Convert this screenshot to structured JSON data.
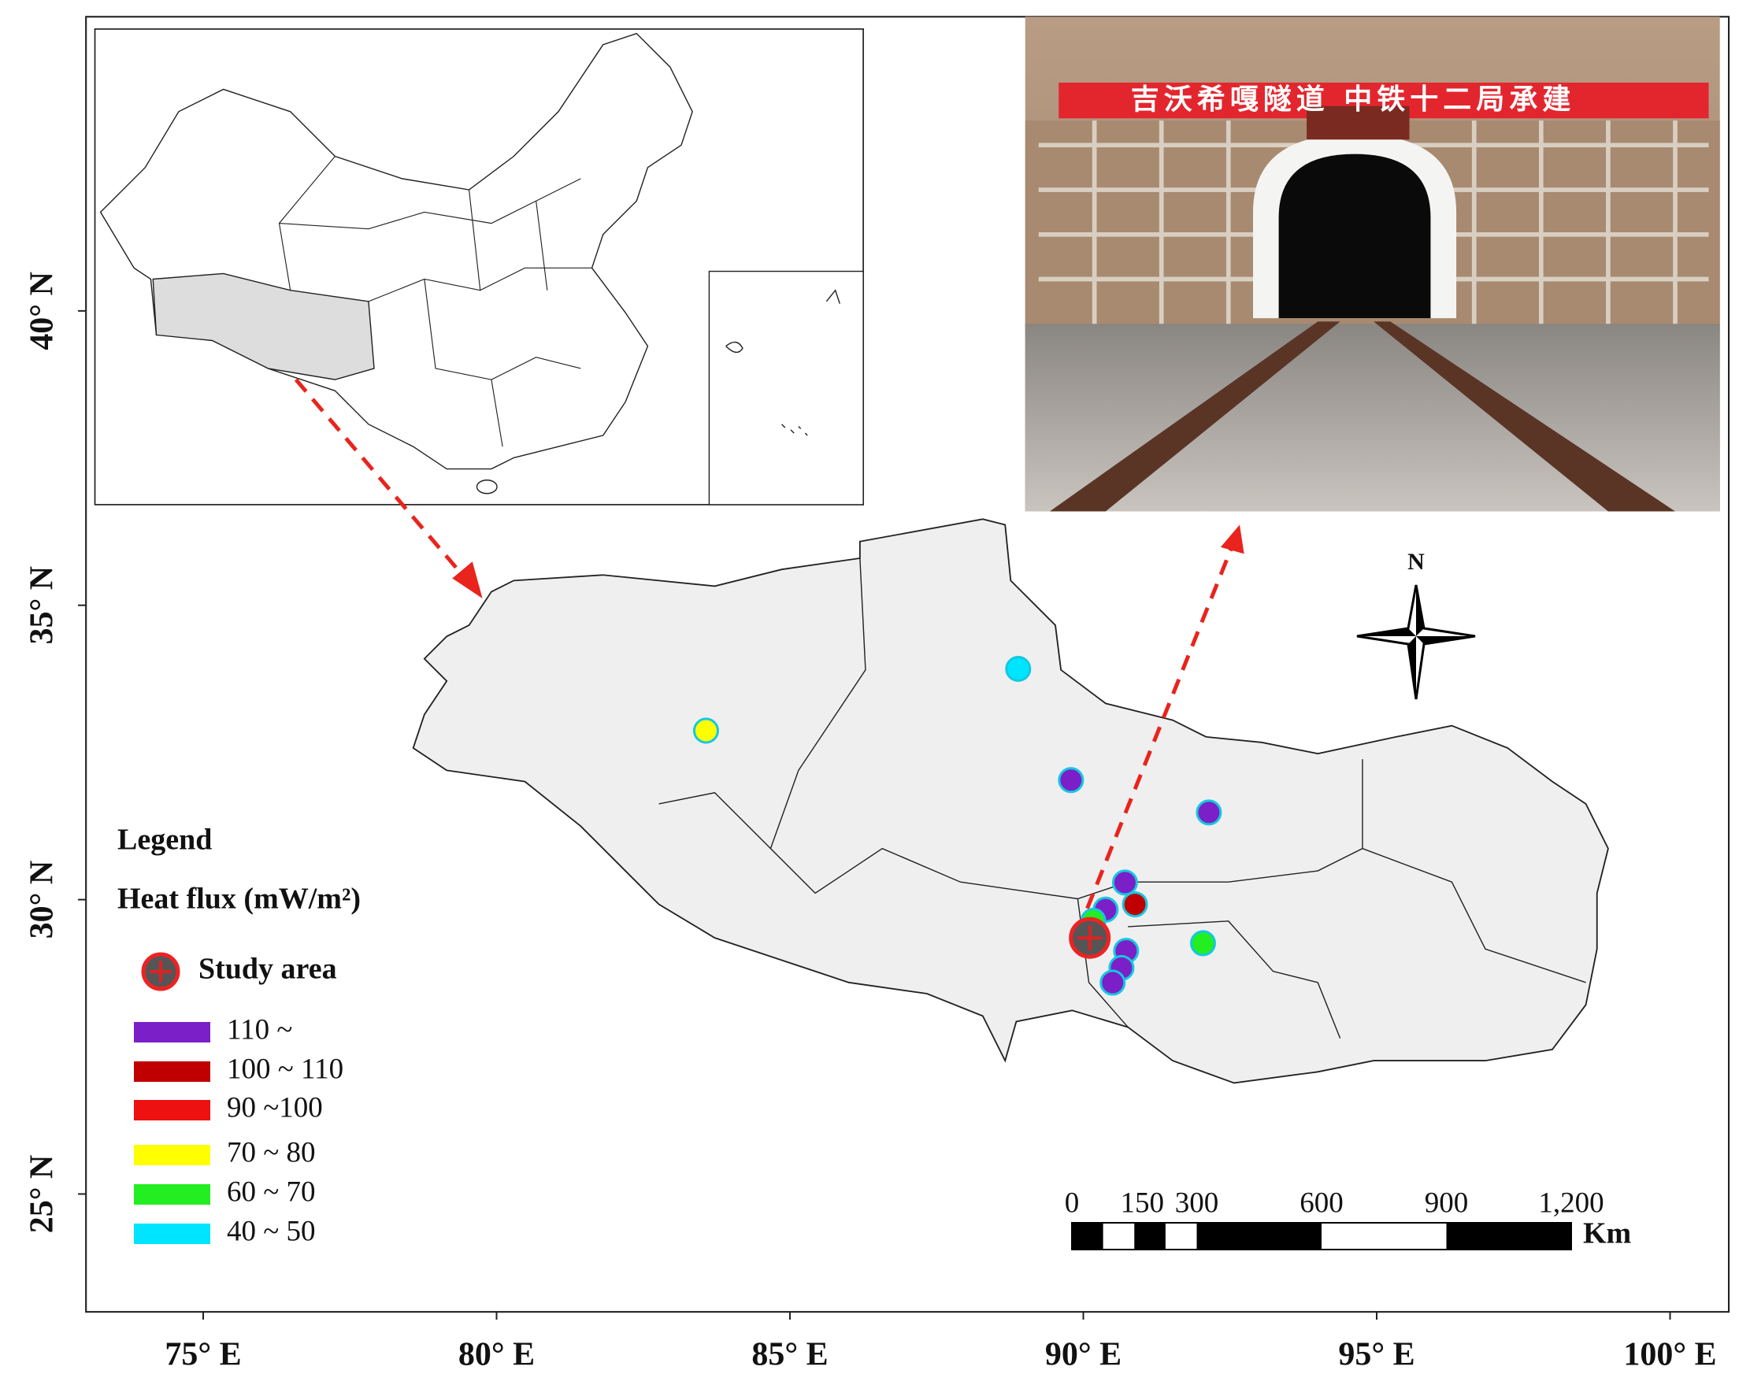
{
  "map": {
    "x_axis": {
      "lim": [
        73,
        101
      ],
      "ticks": [
        {
          "value": 75,
          "label": "75° E"
        },
        {
          "value": 80,
          "label": "80° E"
        },
        {
          "value": 85,
          "label": "85° E"
        },
        {
          "value": 90,
          "label": "90° E"
        },
        {
          "value": 95,
          "label": "95° E"
        },
        {
          "value": 100,
          "label": "100° E"
        }
      ]
    },
    "y_axis": {
      "lim": [
        23,
        45
      ],
      "ticks": [
        {
          "value": 25,
          "label": "25° N"
        },
        {
          "value": 30,
          "label": "30° N"
        },
        {
          "value": 35,
          "label": "35° N"
        },
        {
          "value": 40,
          "label": "40° N"
        }
      ]
    },
    "legend": {
      "title": "Legend",
      "subtitle": "Heat flux (mW/m²)",
      "study_area": "Study area",
      "classes": [
        {
          "label": "110 ~",
          "color": "#7b1fc8"
        },
        {
          "label": "100 ~ 110",
          "color": "#c00000"
        },
        {
          "label": "90 ~100",
          "color": "#ee1111"
        },
        {
          "label": "70 ~ 80",
          "color": "#ffff00"
        },
        {
          "label": "60 ~ 70",
          "color": "#22ee22"
        },
        {
          "label": "40 ~ 50",
          "color": "#00e5ff"
        }
      ]
    },
    "points": [
      {
        "lon": 88.89,
        "lat": 33.92,
        "class": 5
      },
      {
        "lon": 83.57,
        "lat": 32.87,
        "class": 3
      },
      {
        "lon": 89.79,
        "lat": 32.03,
        "class": 0
      },
      {
        "lon": 92.14,
        "lat": 31.48,
        "class": 0
      },
      {
        "lon": 90.71,
        "lat": 30.29,
        "class": 0
      },
      {
        "lon": 90.88,
        "lat": 29.92,
        "class": 1
      },
      {
        "lon": 90.38,
        "lat": 29.83,
        "class": 0
      },
      {
        "lon": 92.04,
        "lat": 29.26,
        "class": 4
      },
      {
        "lon": 90.17,
        "lat": 29.64,
        "class": 4
      },
      {
        "lon": 90.73,
        "lat": 29.13,
        "class": 0
      },
      {
        "lon": 90.65,
        "lat": 28.84,
        "class": 0
      },
      {
        "lon": 90.5,
        "lat": 28.59,
        "class": 0
      }
    ],
    "study_site": {
      "lon": 90.11,
      "lat": 29.35
    },
    "north": "N",
    "scale": {
      "ticks": [
        0,
        150,
        300,
        600,
        900,
        {
          "value": 1200,
          "label": "1,200"
        }
      ],
      "unit": "Km"
    },
    "photo": {
      "banner": "吉沃希嘎隧道 中铁十二局承建"
    }
  }
}
